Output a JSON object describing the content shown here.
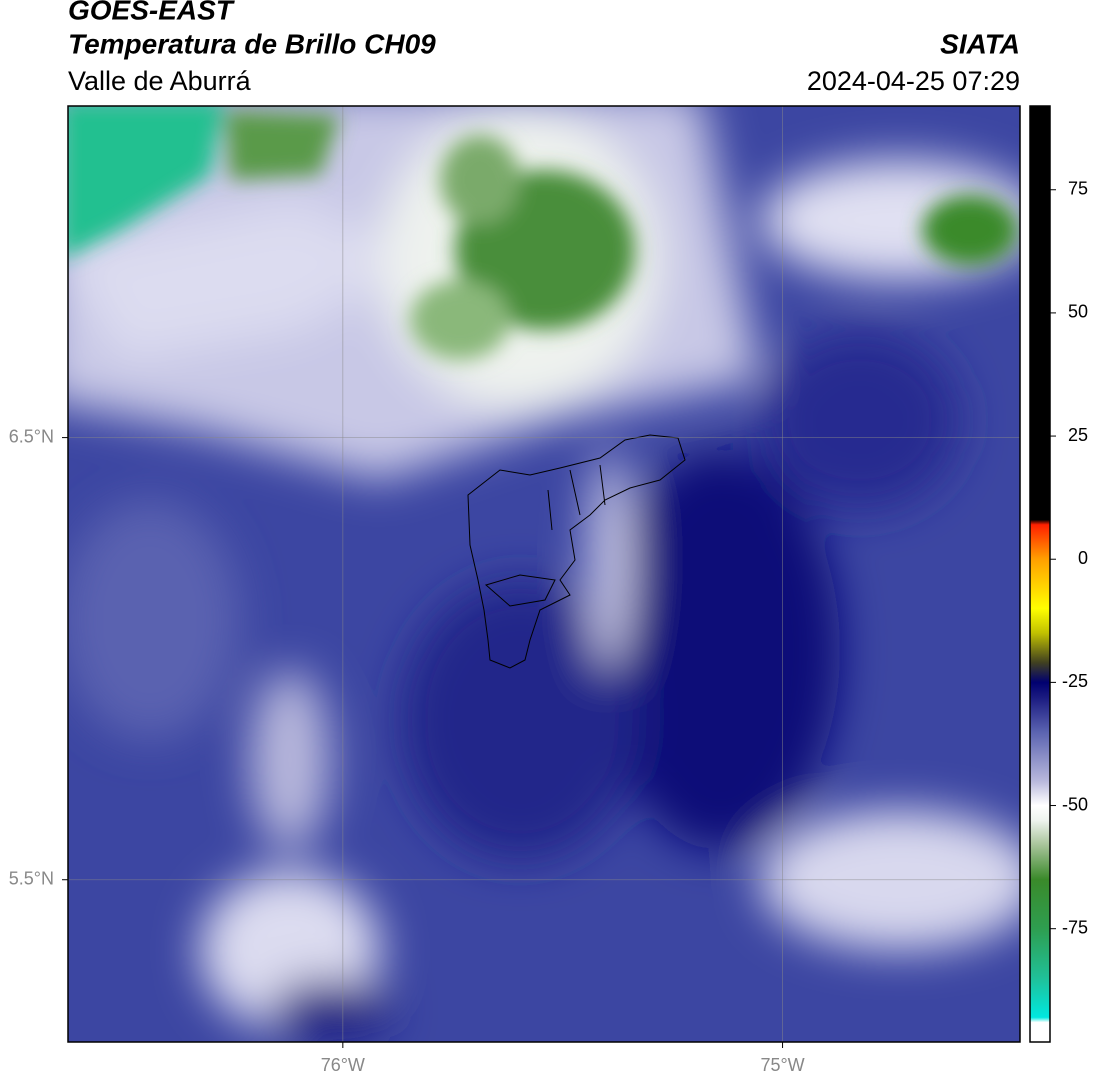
{
  "header": {
    "title": "GOES-EAST",
    "subtitle": "Temperatura de Brillo CH09",
    "region": "Valle de Aburrá",
    "source": "SIATA",
    "datetime": "2024-04-25 07:29"
  },
  "chart_data": {
    "type": "map",
    "xlim": [
      -76.625,
      -74.46
    ],
    "ylim": [
      5.133,
      7.25
    ],
    "xticks": [
      {
        "value": -76,
        "label": "76°W"
      },
      {
        "value": -75,
        "label": "75°W"
      }
    ],
    "yticks": [
      {
        "value": 5.5,
        "label": "5.5°N"
      },
      {
        "value": 6.5,
        "label": "6.5°N"
      }
    ],
    "grid": true,
    "colorbar": {
      "lim": [
        -98,
        92
      ],
      "ticks": [
        -75,
        -50,
        -25,
        0,
        25,
        50,
        75
      ],
      "stops": [
        {
          "value": -98,
          "color": "#ffffff"
        },
        {
          "value": -94,
          "color": "#ffffff"
        },
        {
          "value": -93,
          "color": "#00e8e0"
        },
        {
          "value": -85,
          "color": "#20c098"
        },
        {
          "value": -75,
          "color": "#2e9e50"
        },
        {
          "value": -65,
          "color": "#3a8a2a"
        },
        {
          "value": -58,
          "color": "#a8c49a"
        },
        {
          "value": -53,
          "color": "#eef4ee"
        },
        {
          "value": -50,
          "color": "#ffffff"
        },
        {
          "value": -45,
          "color": "#b8b8dc"
        },
        {
          "value": -35,
          "color": "#5a62b0"
        },
        {
          "value": -28,
          "color": "#1a1a80"
        },
        {
          "value": -25,
          "color": "#000070"
        },
        {
          "value": -21,
          "color": "#404020"
        },
        {
          "value": -15,
          "color": "#c0c000"
        },
        {
          "value": -10,
          "color": "#ffff00"
        },
        {
          "value": 0,
          "color": "#ffa000"
        },
        {
          "value": 7,
          "color": "#ff2000"
        },
        {
          "value": 8,
          "color": "#000000"
        },
        {
          "value": 92,
          "color": "#000000"
        }
      ]
    }
  }
}
